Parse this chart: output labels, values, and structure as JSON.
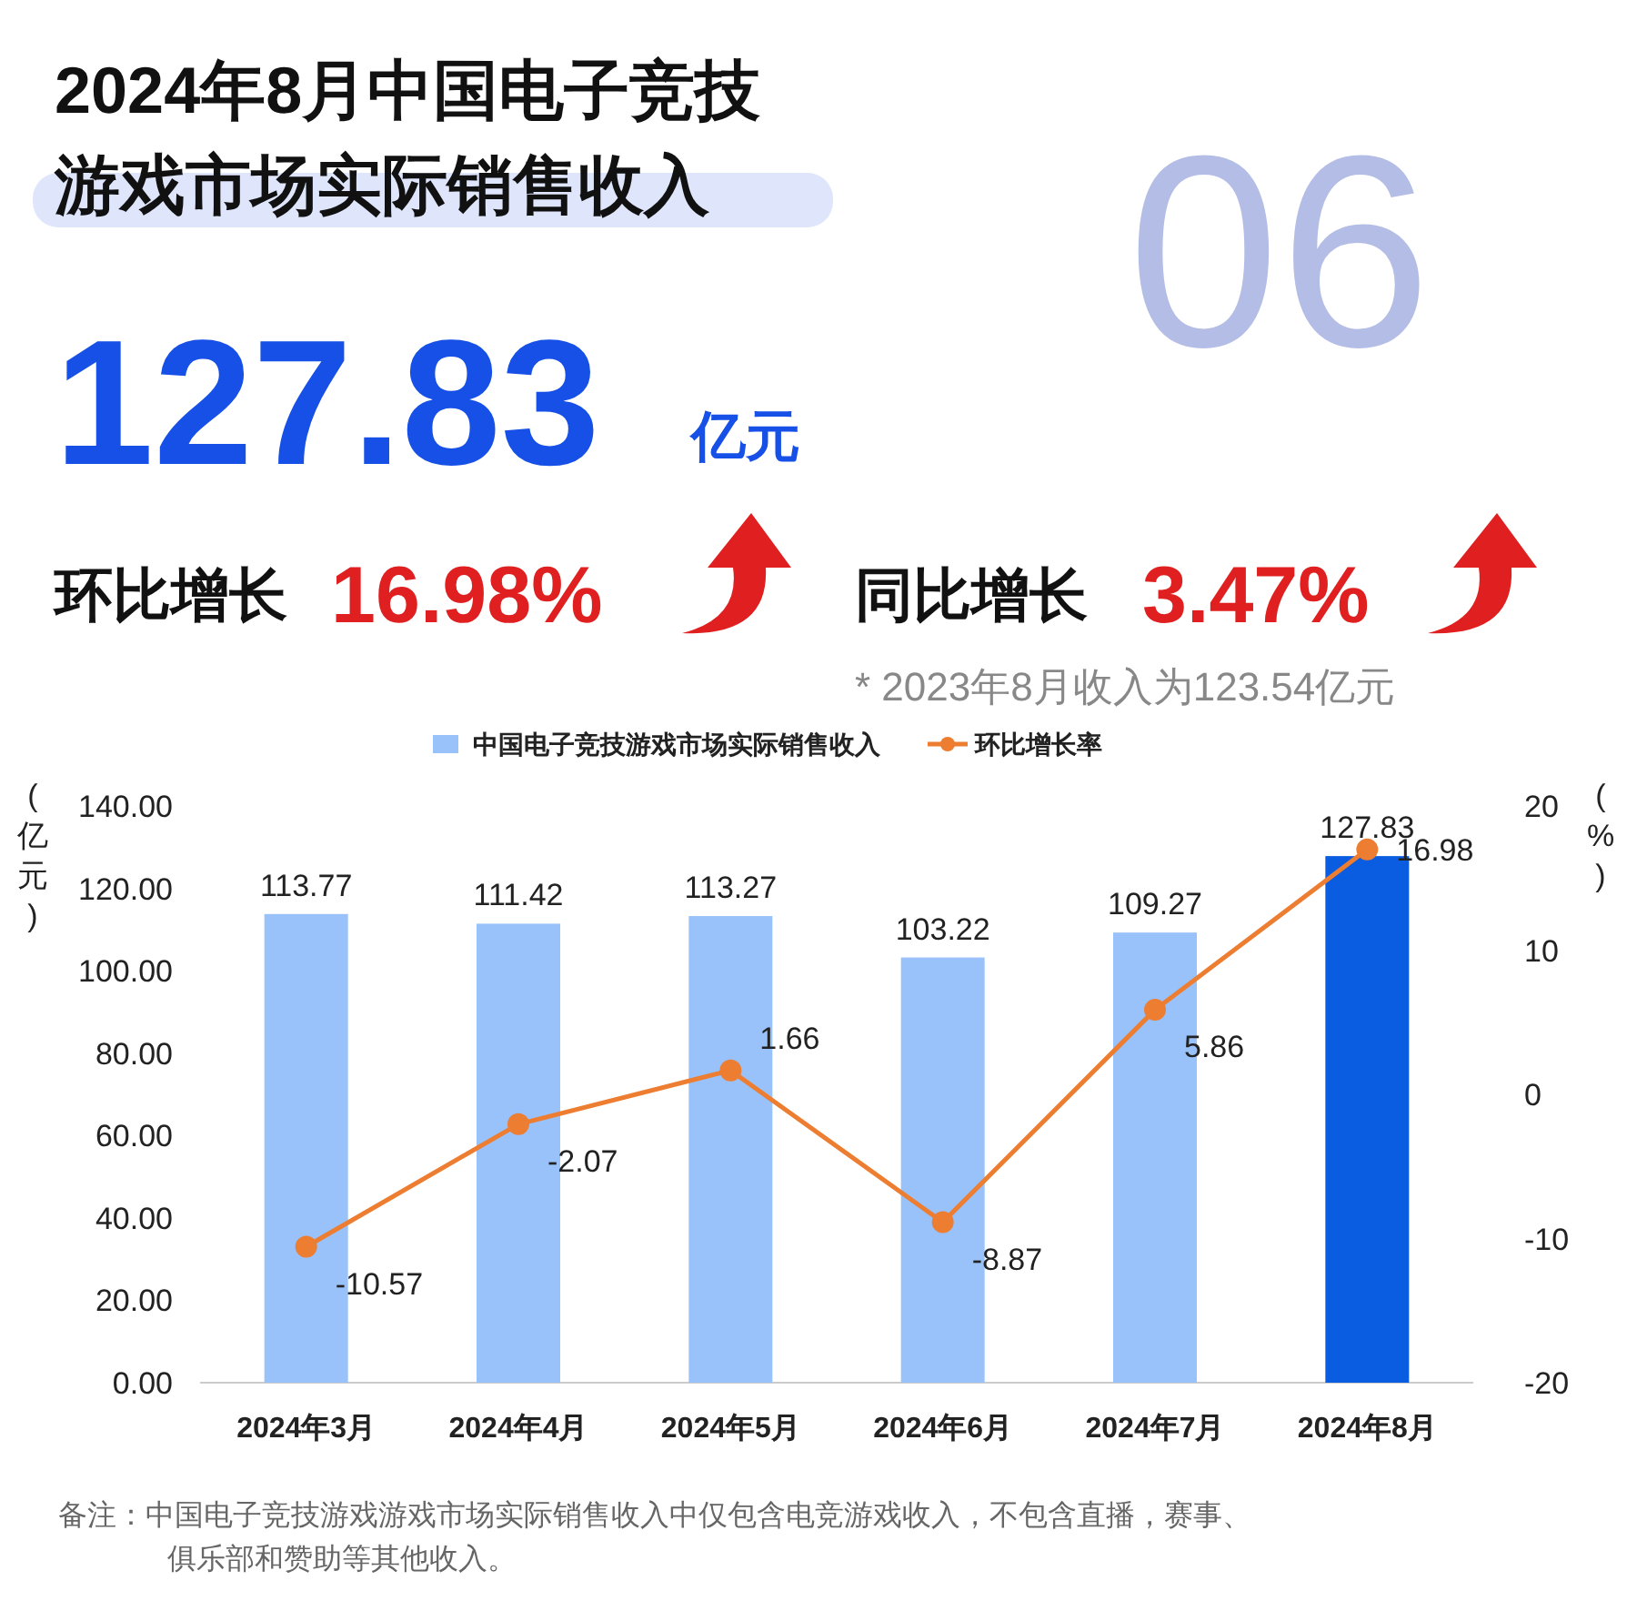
{
  "chart_data": {
    "type": "bar",
    "title": "2024年8月中国电子竞技游戏市场实际销售收入",
    "annotations": [
      "06",
      "127.83",
      "亿元",
      "环比增长",
      "16.98%",
      "同比增长",
      "3.47%",
      "* 2023年8月收入为123.54亿元",
      "备注：中国电子竞技游戏游戏市场实际销售收入中仅包含电竞游戏收入，不包含直播，赛事、俱乐部和赞助等其他收入。"
    ],
    "categories": [
      "2024年3月",
      "2024年4月",
      "2024年5月",
      "2024年6月",
      "2024年7月",
      "2024年8月"
    ],
    "series": [
      {
        "name": "中国电子竞技游戏市场实际销售收入",
        "colors": [
          "#99c2fa",
          "#99c2fa",
          "#99c2fa",
          "#99c2fa",
          "#99c2fa",
          "#0a5ce0"
        ],
        "values": [
          113.77,
          111.42,
          113.27,
          103.22,
          109.27,
          127.83
        ]
      },
      {
        "name": "环比增长率",
        "type": "line",
        "axis": "y2",
        "color": "#ed7d31",
        "marker": "circle",
        "values": [
          -10.57,
          -2.07,
          1.66,
          -8.87,
          5.86,
          16.98
        ]
      }
    ],
    "ylabel": "(亿元)",
    "y2label": "(%)",
    "ylim": [
      0,
      140
    ],
    "yticks": [
      {
        "value": 0,
        "label": "0.00"
      },
      {
        "value": 20,
        "label": "20.00"
      },
      {
        "value": 40,
        "label": "40.00"
      },
      {
        "value": 60,
        "label": "60.00"
      },
      {
        "value": 80,
        "label": "80.00"
      },
      {
        "value": 100,
        "label": "100.00"
      },
      {
        "value": 120,
        "label": "120.00"
      },
      {
        "value": 140,
        "label": "140.00"
      }
    ],
    "y2lim": [
      -20,
      20
    ],
    "y2ticks": [
      -20,
      -10,
      0,
      10,
      20
    ],
    "data_labels": true,
    "legend": "top"
  }
}
